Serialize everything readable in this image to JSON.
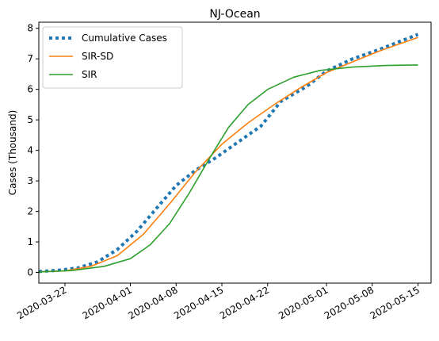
{
  "chart_data": {
    "type": "line",
    "title": "NJ-Ocean",
    "xlabel": "",
    "ylabel": "Cases (Thousand)",
    "xlim": [
      "2020-03-18",
      "2020-05-17"
    ],
    "ylim": [
      -0.35,
      8.2
    ],
    "y_ticks": [
      0,
      1,
      2,
      3,
      4,
      5,
      6,
      7,
      8
    ],
    "x_ticks": [
      "2020-03-22",
      "2020-04-01",
      "2020-04-08",
      "2020-04-15",
      "2020-04-22",
      "2020-05-01",
      "2020-05-08",
      "2020-05-15"
    ],
    "legend_position": "top-left",
    "grid": false,
    "series": [
      {
        "name": "Cumulative Cases",
        "style": "dotted",
        "color": "#1f77b4",
        "points": [
          [
            "2020-03-18",
            0.03
          ],
          [
            "2020-03-21",
            0.07
          ],
          [
            "2020-03-24",
            0.15
          ],
          [
            "2020-03-27",
            0.35
          ],
          [
            "2020-03-30",
            0.75
          ],
          [
            "2020-04-02",
            1.35
          ],
          [
            "2020-04-05",
            2.1
          ],
          [
            "2020-04-08",
            2.85
          ],
          [
            "2020-04-11",
            3.35
          ],
          [
            "2020-04-14",
            3.75
          ],
          [
            "2020-04-17",
            4.2
          ],
          [
            "2020-04-21",
            4.8
          ],
          [
            "2020-04-24",
            5.6
          ],
          [
            "2020-04-28",
            6.1
          ],
          [
            "2020-05-01",
            6.6
          ],
          [
            "2020-05-05",
            7.0
          ],
          [
            "2020-05-09",
            7.3
          ],
          [
            "2020-05-15",
            7.8
          ]
        ]
      },
      {
        "name": "SIR-SD",
        "style": "solid",
        "color": "#ff7f0e",
        "points": [
          [
            "2020-03-18",
            0.02
          ],
          [
            "2020-03-22",
            0.05
          ],
          [
            "2020-03-26",
            0.2
          ],
          [
            "2020-03-30",
            0.55
          ],
          [
            "2020-04-03",
            1.25
          ],
          [
            "2020-04-07",
            2.25
          ],
          [
            "2020-04-11",
            3.3
          ],
          [
            "2020-04-15",
            4.2
          ],
          [
            "2020-04-19",
            4.9
          ],
          [
            "2020-04-23",
            5.5
          ],
          [
            "2020-04-27",
            6.05
          ],
          [
            "2020-05-01",
            6.55
          ],
          [
            "2020-05-05",
            6.9
          ],
          [
            "2020-05-09",
            7.25
          ],
          [
            "2020-05-15",
            7.7
          ]
        ]
      },
      {
        "name": "SIR",
        "style": "solid",
        "color": "#2ca02c",
        "points": [
          [
            "2020-03-18",
            0.02
          ],
          [
            "2020-03-23",
            0.06
          ],
          [
            "2020-03-28",
            0.2
          ],
          [
            "2020-04-01",
            0.45
          ],
          [
            "2020-04-04",
            0.9
          ],
          [
            "2020-04-07",
            1.6
          ],
          [
            "2020-04-10",
            2.6
          ],
          [
            "2020-04-13",
            3.7
          ],
          [
            "2020-04-16",
            4.75
          ],
          [
            "2020-04-19",
            5.5
          ],
          [
            "2020-04-22",
            6.0
          ],
          [
            "2020-04-26",
            6.4
          ],
          [
            "2020-04-30",
            6.62
          ],
          [
            "2020-05-05",
            6.73
          ],
          [
            "2020-05-10",
            6.78
          ],
          [
            "2020-05-15",
            6.8
          ]
        ]
      }
    ]
  }
}
